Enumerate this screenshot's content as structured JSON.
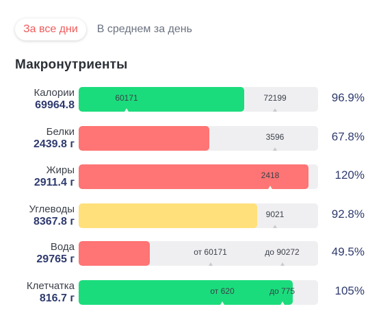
{
  "tabs": [
    {
      "label": "За все дни",
      "active": true
    },
    {
      "label": "В среднем за день",
      "active": false
    }
  ],
  "section_title": "Макронутриенты",
  "colors": {
    "green": "#1bdc7c",
    "red": "#ff7474",
    "yellow": "#ffe07a",
    "accent": "#ef5a5a"
  },
  "rows": [
    {
      "name": "Калории",
      "value": "69964.8",
      "fill_fraction": 0.69,
      "color": "green",
      "marks": [
        {
          "text": "60171"
        },
        {
          "text": "72199"
        }
      ],
      "percent": "96.9%"
    },
    {
      "name": "Белки",
      "value": "2439.8 г",
      "fill_fraction": 0.545,
      "color": "red",
      "marks": [
        {
          "text": "3596"
        }
      ],
      "percent": "67.8%"
    },
    {
      "name": "Жиры",
      "value": "2911.4 г",
      "fill_fraction": 0.96,
      "color": "red",
      "marks": [
        {
          "text": "2418"
        }
      ],
      "percent": "120%"
    },
    {
      "name": "Углеводы",
      "value": "8367.8 г",
      "fill_fraction": 0.745,
      "color": "yellow",
      "marks": [
        {
          "text": "9021"
        }
      ],
      "percent": "92.8%"
    },
    {
      "name": "Вода",
      "value": "29765 г",
      "fill_fraction": 0.297,
      "color": "red",
      "marks": [
        {
          "text": "от 60171"
        },
        {
          "text": "до 90272"
        }
      ],
      "percent": "49.5%"
    },
    {
      "name": "Клетчатка",
      "value": "816.7 г",
      "fill_fraction": 0.895,
      "color": "green",
      "marks": [
        {
          "text": "от 620"
        },
        {
          "text": "до 775"
        }
      ],
      "percent": "105%"
    }
  ]
}
